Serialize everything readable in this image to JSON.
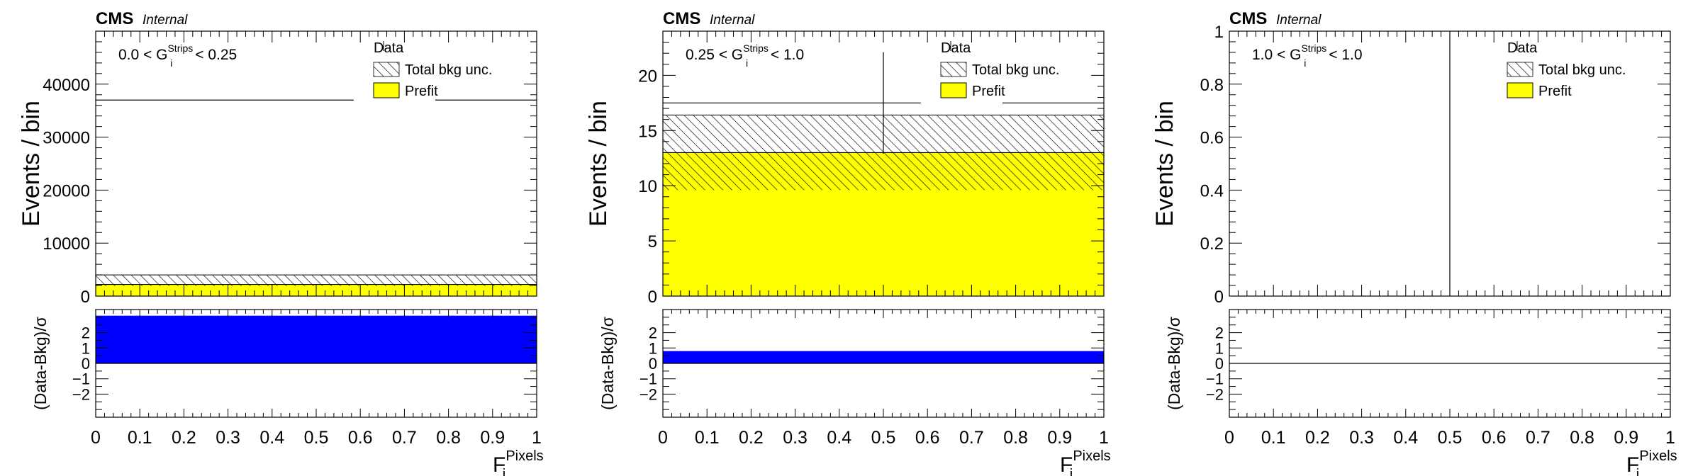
{
  "colors": {
    "prefit": "#ffff00",
    "pull": "#0000ff",
    "axis": "#000000",
    "background": "#ffffff"
  },
  "labels": {
    "cms": "CMS",
    "internal": "Internal",
    "legend_data": "Data",
    "legend_unc": "Total bkg unc.",
    "legend_prefit": "Prefit",
    "y_top": "Events / bin",
    "y_bottom": "(Data-Bkg)/σ",
    "x_main": "F",
    "x_sub": "i",
    "x_sup": "Pixels"
  },
  "chart_data": [
    {
      "type": "bar",
      "region": {
        "low": "0.0",
        "high": "0.25",
        "var": "G",
        "sub": "i",
        "sup": "Strips",
        "op": "<"
      },
      "x": [
        0,
        1
      ],
      "xlim": [
        0,
        1
      ],
      "xticks": [
        "0",
        "0.1",
        "0.2",
        "0.3",
        "0.4",
        "0.5",
        "0.6",
        "0.7",
        "0.8",
        "0.9",
        "1"
      ],
      "ylim": [
        0,
        50000
      ],
      "yticks": [
        0,
        10000,
        20000,
        30000,
        40000
      ],
      "ytick_labels": [
        "0",
        "10000",
        "20000",
        "30000",
        "40000"
      ],
      "prefit": 2200,
      "unc_low": 1900,
      "unc_high": 4000,
      "data": 37000,
      "data_err": 0,
      "pull": 3.1,
      "pull_ylim": [
        -3.5,
        3.5
      ],
      "pull_ticks": [
        -2,
        -1,
        0,
        1,
        2
      ],
      "pull_tick_labels": [
        "−2",
        "−1",
        "0",
        "1",
        "2"
      ]
    },
    {
      "type": "bar",
      "region": {
        "low": "0.25",
        "high": "1.0",
        "var": "G",
        "sub": "i",
        "sup": "Strips",
        "op": "<"
      },
      "x": [
        0,
        1
      ],
      "xlim": [
        0,
        1
      ],
      "xticks": [
        "0",
        "0.1",
        "0.2",
        "0.3",
        "0.4",
        "0.5",
        "0.6",
        "0.7",
        "0.8",
        "0.9",
        "1"
      ],
      "ylim": [
        0,
        24
      ],
      "yticks": [
        0,
        5,
        10,
        15,
        20
      ],
      "ytick_labels": [
        "0",
        "5",
        "10",
        "15",
        "20"
      ],
      "prefit": 13,
      "unc_low": 9.6,
      "unc_high": 16.4,
      "data": 17.5,
      "data_err": 4.6,
      "pull": 0.8,
      "pull_ylim": [
        -3.5,
        3.5
      ],
      "pull_ticks": [
        -2,
        -1,
        0,
        1,
        2
      ],
      "pull_tick_labels": [
        "−2",
        "−1",
        "0",
        "1",
        "2"
      ]
    },
    {
      "type": "bar",
      "region": {
        "low": "1.0",
        "high": "1.0",
        "var": "G",
        "sub": "i",
        "sup": "Strips",
        "op": "<"
      },
      "x": [
        0,
        1
      ],
      "xlim": [
        0,
        1
      ],
      "xticks": [
        "0",
        "0.1",
        "0.2",
        "0.3",
        "0.4",
        "0.5",
        "0.6",
        "0.7",
        "0.8",
        "0.9",
        "1"
      ],
      "ylim": [
        0,
        1
      ],
      "yticks": [
        0,
        0.2,
        0.4,
        0.6,
        0.8,
        1
      ],
      "ytick_labels": [
        "0",
        "0.2",
        "0.4",
        "0.6",
        "0.8",
        "1"
      ],
      "prefit": 0,
      "unc_low": 0,
      "unc_high": 0,
      "data": 0,
      "data_err": 1.0,
      "pull": 0,
      "pull_ylim": [
        -3.5,
        3.5
      ],
      "pull_ticks": [
        -2,
        -1,
        0,
        1,
        2
      ],
      "pull_tick_labels": [
        "−2",
        "−1",
        "0",
        "1",
        "2"
      ]
    }
  ]
}
